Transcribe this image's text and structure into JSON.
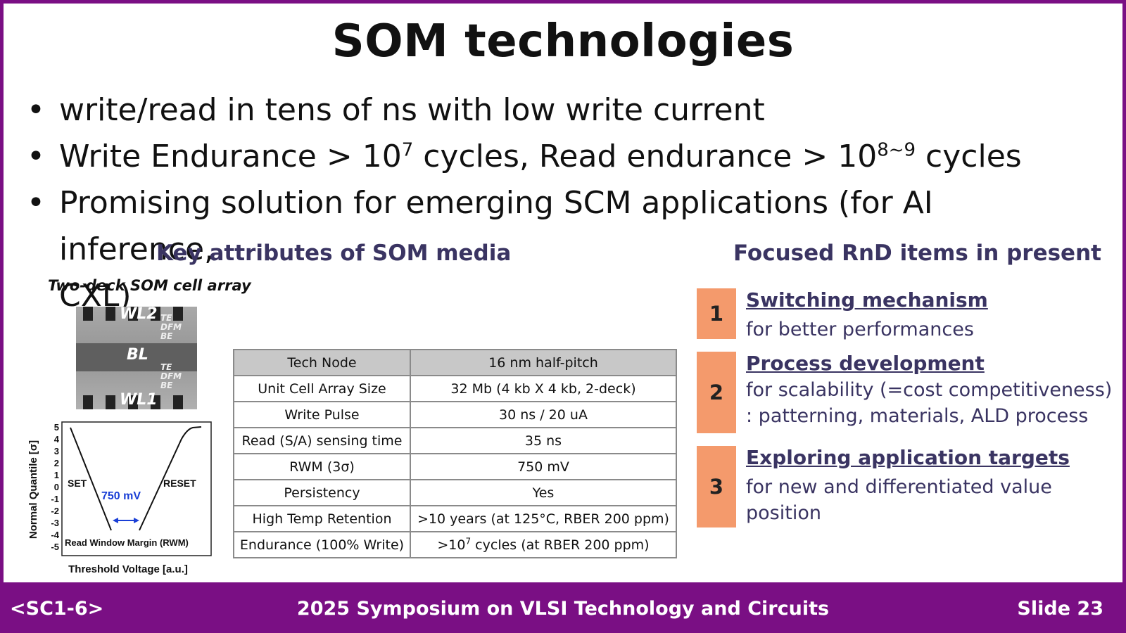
{
  "slide": {
    "title": "SOM technologies",
    "bullets": [
      {
        "text": "write/read in tens of ns with low write current"
      },
      {
        "pre": "Write Endurance > 10",
        "sup1": "7",
        "mid": " cycles, Read endurance > 10",
        "sup2": "8~9",
        "post": " cycles"
      },
      {
        "line1": "Promising solution for emerging SCM applications (for AI inference,",
        "line2": "CXL)"
      }
    ],
    "key_heading": "Key attributes of SOM media",
    "focus_heading": "Focused RnD items in present",
    "cell_caption": "Two-deck SOM cell array",
    "tem_labels": {
      "wl2": "WL2",
      "bl": "BL",
      "wl1": "WL1",
      "stack_top": [
        "TE",
        "DFM",
        "BE"
      ],
      "stack_bottom": [
        "TE",
        "DFM",
        "BE"
      ]
    },
    "graph": {
      "ylabel": "Normal Quantile [σ]",
      "xlabel": "Threshold Voltage [a.u.]",
      "yticks": [
        "5",
        "4",
        "3",
        "2",
        "1",
        "0",
        "-1",
        "-2",
        "-3",
        "-4",
        "-5"
      ],
      "set_label": "SET",
      "reset_label": "RESET",
      "window_value": "750 mV",
      "margin_label": "Read Window Margin (RWM)",
      "arrow_color": "#1a3fd6"
    },
    "table": {
      "header": [
        "Tech Node",
        "16 nm half-pitch"
      ],
      "rows": [
        [
          "Unit Cell Array Size",
          "32 Mb (4 kb X 4 kb, 2-deck)"
        ],
        [
          "Write Pulse",
          "30 ns / 20 uA"
        ],
        [
          "Read (S/A) sensing time",
          "35 ns"
        ],
        [
          "RWM (3σ)",
          "750 mV"
        ],
        [
          "Persistency",
          "Yes"
        ],
        [
          "High Temp Retention",
          ">10 years (at 125°C, RBER 200 ppm)"
        ]
      ],
      "endurance": {
        "label": "Endurance (100% Write)",
        "pre": ">10",
        "sup": "7",
        "post": " cycles (at RBER 200 ppm)"
      }
    },
    "focus_items": [
      {
        "num": "1",
        "head": "Switching mechanism",
        "desc": [
          "for better performances"
        ]
      },
      {
        "num": "2",
        "head": "Process development",
        "desc": [
          "for scalability (=cost competitiveness)",
          ": patterning, materials, ALD process"
        ]
      },
      {
        "num": "3",
        "head": "Exploring application targets",
        "desc": [
          "for new and differentiated value",
          "position"
        ]
      }
    ],
    "footer": {
      "left": "<SC1-6>",
      "center": "2025 Symposium on VLSI Technology and Circuits",
      "right": "Slide 23"
    },
    "colors": {
      "accent": "#7a0f84",
      "heading": "#3a3462",
      "badge": "#f49a6c"
    }
  }
}
